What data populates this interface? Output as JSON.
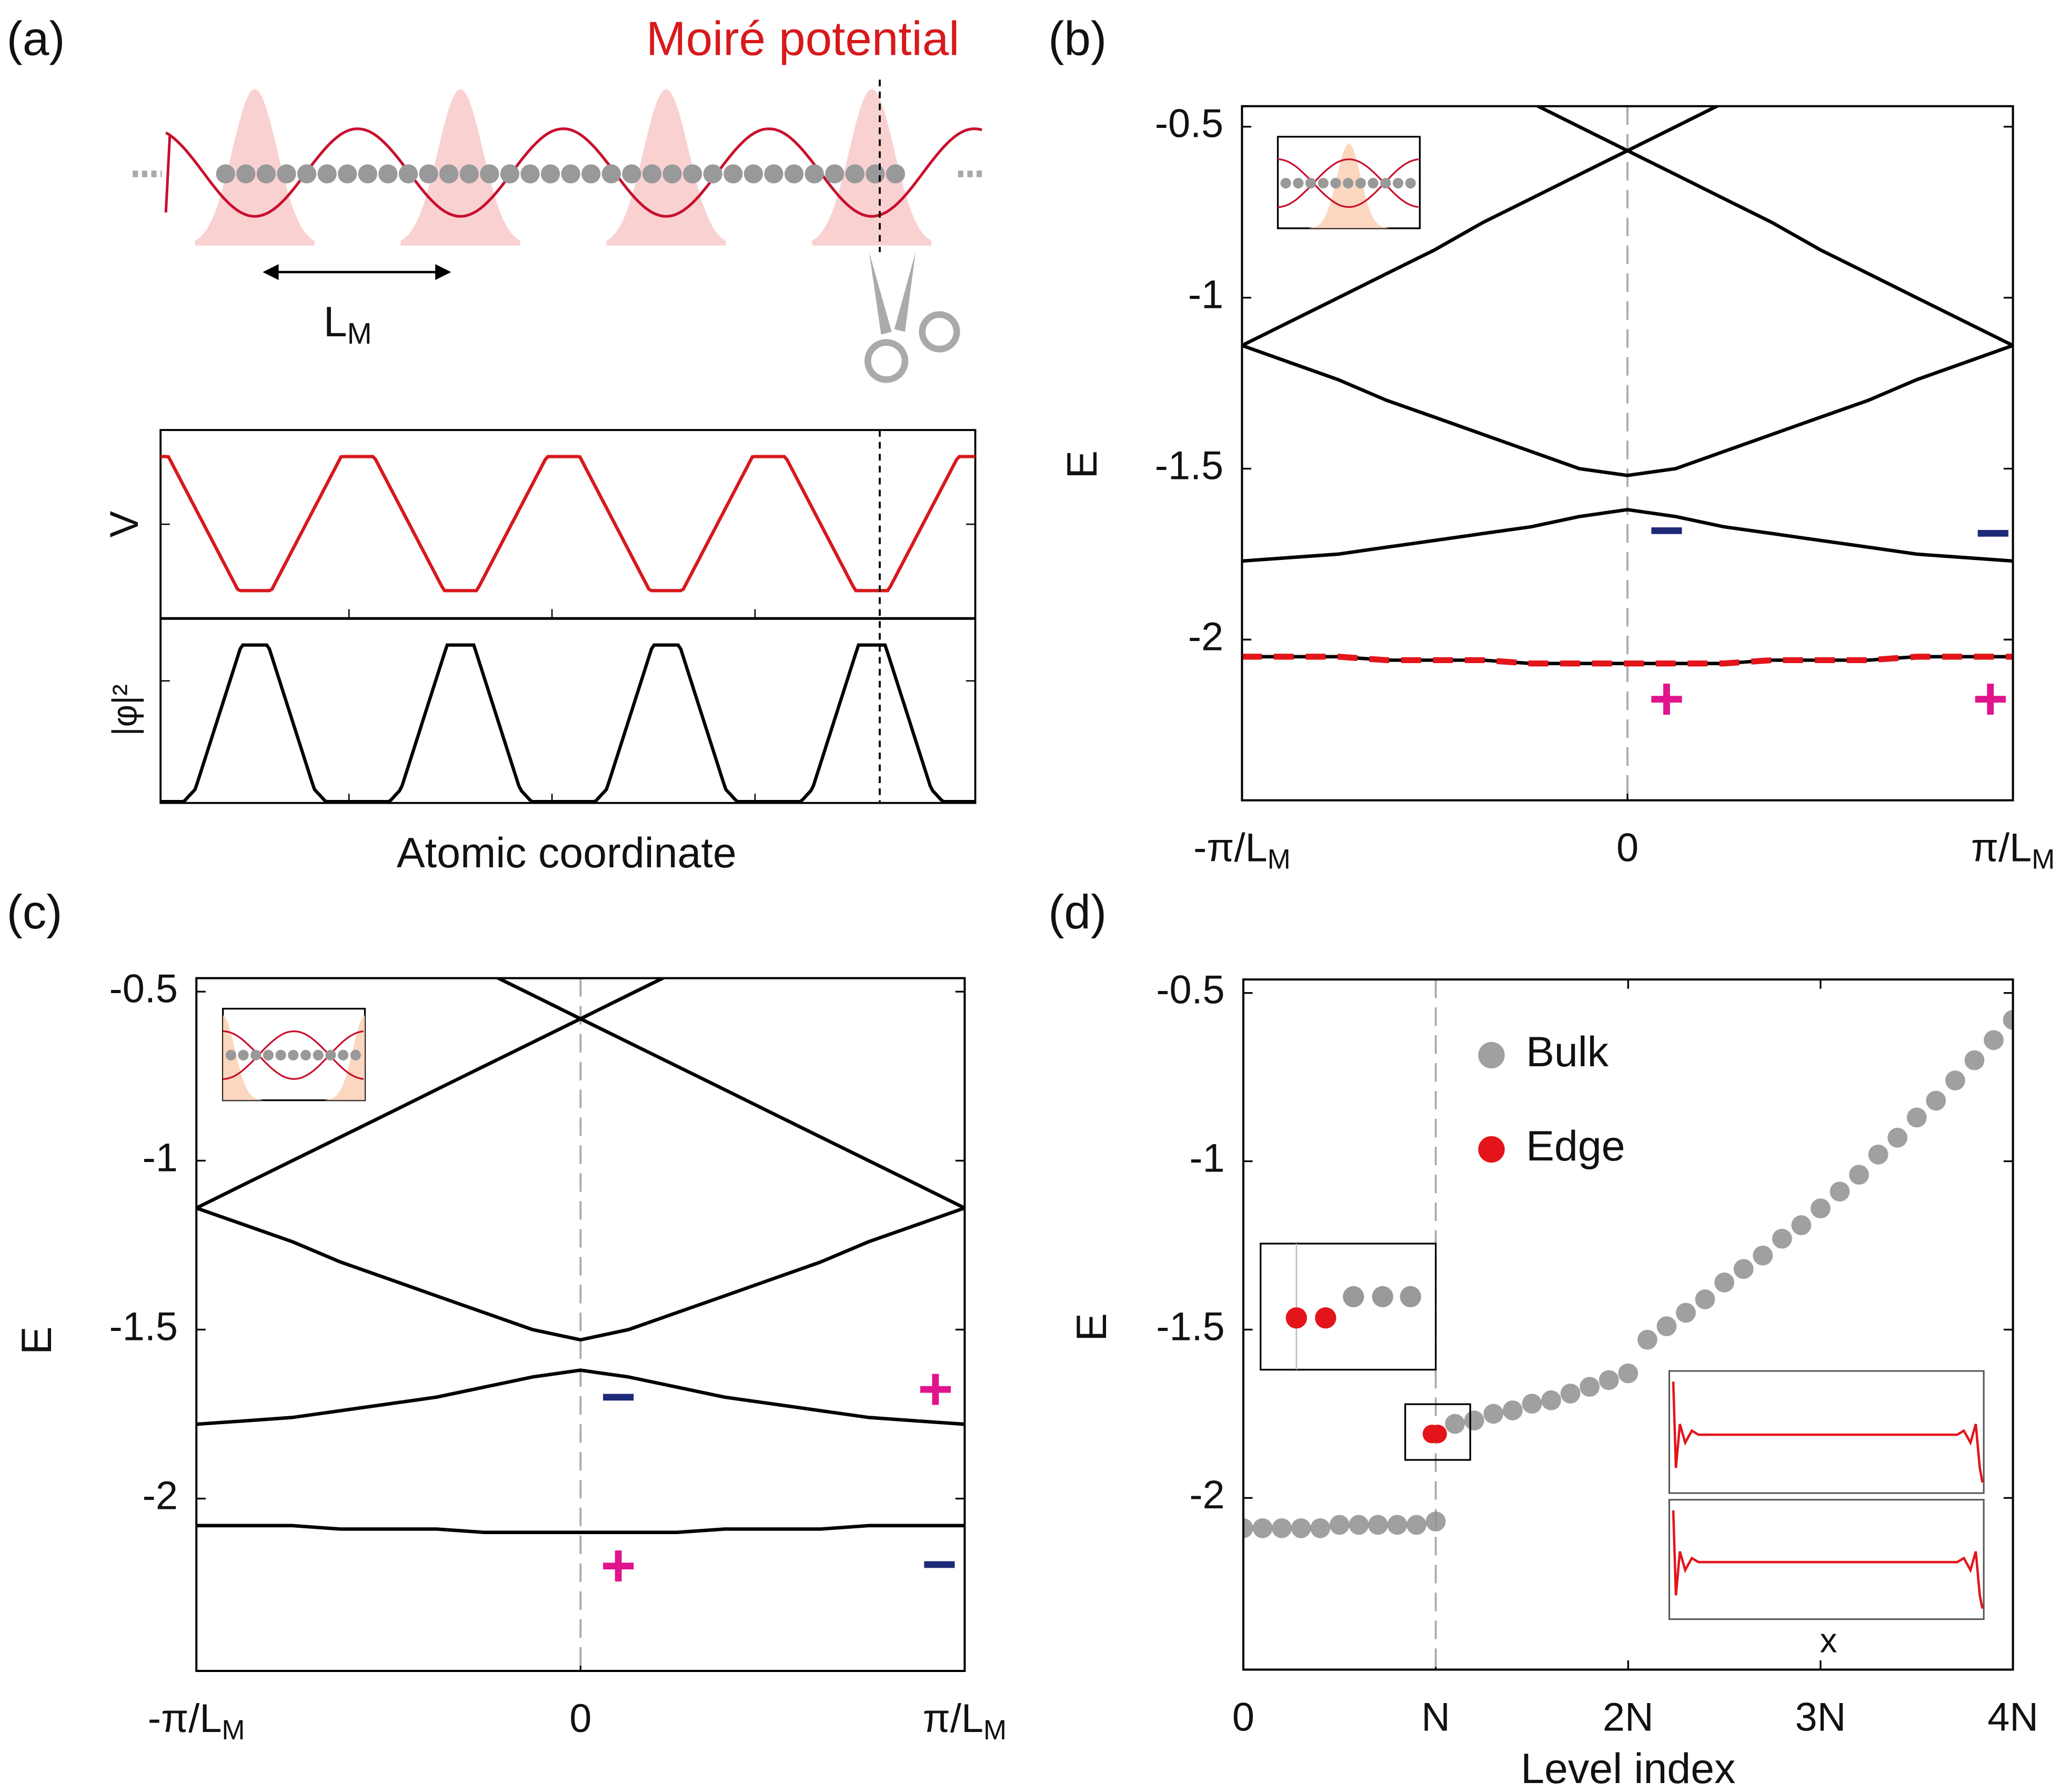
{
  "panel_a": {
    "panel_label": "(a)",
    "title": "Moiré potential",
    "period_label": {
      "label": "L",
      "sub": "M"
    },
    "v_label": "V",
    "phi_label": "|φ|²",
    "x_label": "Atomic coordinate"
  },
  "chart_data": [
    {
      "type": "line",
      "panel_label": "(b)",
      "y_label": "E",
      "x": [
        -1,
        -0.875,
        -0.75,
        -0.625,
        -0.5,
        -0.375,
        -0.25,
        -0.125,
        0,
        0.125,
        0.25,
        0.375,
        0.5,
        0.625,
        0.75,
        0.875,
        1
      ],
      "xlim": [
        -1,
        1
      ],
      "xticks": [
        {
          "value": -1,
          "label": "-π/L",
          "sub": "M"
        },
        0,
        {
          "value": 1,
          "label": "π/L",
          "sub": "M"
        }
      ],
      "ylim": [
        -2.47,
        -0.44
      ],
      "yticks": [
        -2,
        -1.5,
        -1,
        -0.5
      ],
      "vline": 0,
      "series": [
        {
          "color": "#000000",
          "values": [
            -2.05,
            -2.05,
            -2.05,
            -2.06,
            -2.06,
            -2.06,
            -2.07,
            -2.07,
            -2.07,
            -2.07,
            -2.07,
            -2.06,
            -2.06,
            -2.06,
            -2.05,
            -2.05,
            -2.05
          ]
        },
        {
          "color": "#000000",
          "values": [
            -1.77,
            -1.76,
            -1.75,
            -1.73,
            -1.71,
            -1.69,
            -1.67,
            -1.64,
            -1.62,
            -1.64,
            -1.67,
            -1.69,
            -1.71,
            -1.73,
            -1.75,
            -1.76,
            -1.77
          ]
        },
        {
          "color": "#000000",
          "values": [
            -1.14,
            -1.19,
            -1.24,
            -1.3,
            -1.35,
            -1.4,
            -1.45,
            -1.5,
            -1.52,
            -1.5,
            -1.45,
            -1.4,
            -1.35,
            -1.3,
            -1.24,
            -1.19,
            -1.14
          ]
        },
        {
          "color": "#000000",
          "values": [
            -1.14,
            -1.07,
            -1,
            -0.93,
            -0.86,
            -0.78,
            -0.71,
            -0.64,
            -0.57,
            -0.64,
            -0.71,
            -0.78,
            -0.86,
            -0.93,
            -1,
            -1.07,
            -1.14
          ]
        },
        {
          "color": "#000000",
          "values": [
            null,
            null,
            null,
            null,
            null,
            null,
            -0.43,
            -0.5,
            -0.57,
            -0.5,
            -0.43,
            null,
            null,
            null,
            null,
            null,
            null
          ]
        },
        {
          "color": "#e3151b",
          "dashed": true,
          "values": [
            -2.05,
            -2.05,
            -2.05,
            -2.06,
            -2.06,
            -2.06,
            -2.07,
            -2.07,
            -2.07,
            -2.07,
            -2.07,
            -2.06,
            -2.06,
            -2.06,
            -2.05,
            -2.05,
            -2.05
          ]
        }
      ],
      "annotations": [
        {
          "text": "−",
          "color": "#1e2a78"
        },
        {
          "text": "−",
          "color": "#1e2a78"
        },
        {
          "text": "+",
          "color": "#e0148c"
        },
        {
          "text": "+",
          "color": "#e0148c"
        }
      ]
    },
    {
      "type": "line",
      "panel_label": "(c)",
      "y_label": "E",
      "x": [
        -1,
        -0.875,
        -0.75,
        -0.625,
        -0.5,
        -0.375,
        -0.25,
        -0.125,
        0,
        0.125,
        0.25,
        0.375,
        0.5,
        0.625,
        0.75,
        0.875,
        1
      ],
      "xlim": [
        -1,
        1
      ],
      "xticks": [
        {
          "value": -1,
          "label": "-π/L",
          "sub": "M"
        },
        0,
        {
          "value": 1,
          "label": "π/L",
          "sub": "M"
        }
      ],
      "ylim": [
        -2.51,
        -0.46
      ],
      "yticks": [
        -2,
        -1.5,
        -1,
        -0.5
      ],
      "vline": 0,
      "series": [
        {
          "color": "#000000",
          "values": [
            -2.08,
            -2.08,
            -2.08,
            -2.09,
            -2.09,
            -2.09,
            -2.1,
            -2.1,
            -2.1,
            -2.1,
            -2.1,
            -2.09,
            -2.09,
            -2.09,
            -2.08,
            -2.08,
            -2.08
          ]
        },
        {
          "color": "#000000",
          "values": [
            -1.78,
            -1.77,
            -1.76,
            -1.74,
            -1.72,
            -1.7,
            -1.67,
            -1.64,
            -1.62,
            -1.64,
            -1.67,
            -1.7,
            -1.72,
            -1.74,
            -1.76,
            -1.77,
            -1.78
          ]
        },
        {
          "color": "#000000",
          "values": [
            -1.14,
            -1.19,
            -1.24,
            -1.3,
            -1.35,
            -1.4,
            -1.45,
            -1.5,
            -1.53,
            -1.5,
            -1.45,
            -1.4,
            -1.35,
            -1.3,
            -1.24,
            -1.19,
            -1.14
          ]
        },
        {
          "color": "#000000",
          "values": [
            -1.14,
            -1.07,
            -1,
            -0.93,
            -0.86,
            -0.79,
            -0.72,
            -0.65,
            -0.58,
            -0.65,
            -0.72,
            -0.79,
            -0.86,
            -0.93,
            -1,
            -1.07,
            -1.14
          ]
        },
        {
          "color": "#000000",
          "values": [
            null,
            null,
            null,
            null,
            null,
            null,
            -0.44,
            -0.51,
            -0.58,
            -0.51,
            -0.44,
            null,
            null,
            null,
            null,
            null,
            null
          ]
        }
      ],
      "annotations": [
        {
          "text": "−",
          "color": "#1e2a78"
        },
        {
          "text": "+",
          "color": "#e0148c"
        },
        {
          "text": "+",
          "color": "#e0148c"
        },
        {
          "text": "−",
          "color": "#1e2a78"
        }
      ]
    },
    {
      "type": "scatter",
      "panel_label": "(d)",
      "y_label": "E",
      "x_label": "Level index",
      "inset_x_label": "x",
      "xlim": [
        0,
        4
      ],
      "xticks": [
        0,
        {
          "value": 1,
          "label": "N"
        },
        {
          "value": 2,
          "label": "2N"
        },
        {
          "value": 3,
          "label": "3N"
        },
        {
          "value": 4,
          "label": "4N"
        }
      ],
      "ylim": [
        -2.51,
        -0.46
      ],
      "yticks": [
        -2,
        -1.5,
        -1,
        -0.5
      ],
      "vline": 1,
      "legend": "upper left",
      "series": [
        {
          "name": "Bulk",
          "color": "#8f8f8f",
          "x": [
            0,
            0.1,
            0.2,
            0.3,
            0.4,
            0.5,
            0.6,
            0.7,
            0.8,
            0.9,
            1,
            1.1,
            1.2,
            1.3,
            1.4,
            1.5,
            1.6,
            1.7,
            1.8,
            1.9,
            2,
            2.1,
            2.2,
            2.3,
            2.4,
            2.5,
            2.6,
            2.7,
            2.8,
            2.9,
            3,
            3.1,
            3.2,
            3.3,
            3.4,
            3.5,
            3.6,
            3.7,
            3.8,
            3.9,
            4
          ],
          "values": [
            -2.09,
            -2.09,
            -2.09,
            -2.09,
            -2.09,
            -2.08,
            -2.08,
            -2.08,
            -2.08,
            -2.08,
            -2.07,
            -1.78,
            -1.77,
            -1.75,
            -1.74,
            -1.72,
            -1.71,
            -1.69,
            -1.67,
            -1.65,
            -1.63,
            -1.53,
            -1.49,
            -1.45,
            -1.41,
            -1.36,
            -1.32,
            -1.28,
            -1.23,
            -1.19,
            -1.14,
            -1.09,
            -1.04,
            -0.98,
            -0.93,
            -0.87,
            -0.82,
            -0.76,
            -0.7,
            -0.64,
            -0.58
          ]
        },
        {
          "name": "Edge",
          "color": "#e3151b",
          "x": [
            0.98,
            1.01
          ],
          "values": [
            -1.81,
            -1.81
          ]
        }
      ]
    }
  ]
}
